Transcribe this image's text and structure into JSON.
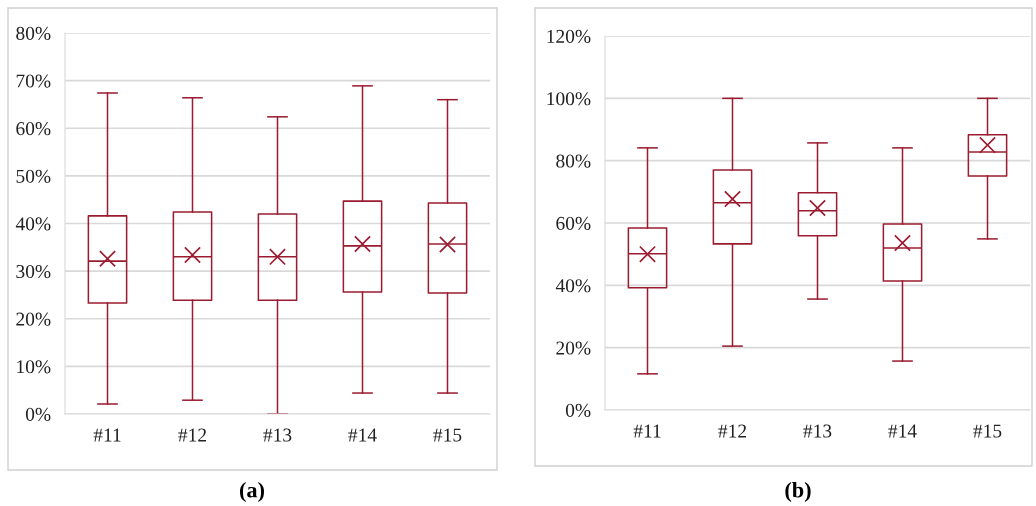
{
  "chart_data": [
    {
      "type": "box",
      "categories": [
        "#11",
        "#12",
        "#13",
        "#14",
        "#15"
      ],
      "color": "#9b1c31",
      "marker": "cross",
      "grid": "y",
      "ylim": [
        0,
        80
      ],
      "yticks": [
        {
          "value": 0,
          "label": "0%"
        },
        {
          "value": 10,
          "label": "10%"
        },
        {
          "value": 20,
          "label": "20%"
        },
        {
          "value": 30,
          "label": "30%"
        },
        {
          "value": 40,
          "label": "40%"
        },
        {
          "value": 50,
          "label": "50%"
        },
        {
          "value": 60,
          "label": "60%"
        },
        {
          "value": 70,
          "label": "70%"
        },
        {
          "value": 80,
          "label": "80%"
        }
      ],
      "boxes": [
        {
          "low": 2.1,
          "q1": 23.3,
          "median": 32.1,
          "q3": 41.6,
          "high": 67.4,
          "mean": 32.6
        },
        {
          "low": 2.9,
          "q1": 23.9,
          "median": 33.0,
          "q3": 42.4,
          "high": 66.4,
          "mean": 33.4
        },
        {
          "low": 0,
          "q1": 23.9,
          "median": 33.0,
          "q3": 42.0,
          "high": 62.4,
          "mean": 33.0
        },
        {
          "low": 4.4,
          "q1": 25.6,
          "median": 35.3,
          "q3": 44.7,
          "high": 68.9,
          "mean": 35.7
        },
        {
          "low": 4.4,
          "q1": 25.4,
          "median": 35.7,
          "q3": 44.3,
          "high": 66.0,
          "mean": 35.6
        }
      ],
      "annotations": [
        "(a)"
      ]
    },
    {
      "type": "box",
      "categories": [
        "#11",
        "#12",
        "#13",
        "#14",
        "#15"
      ],
      "color": "#9b1c31",
      "marker": "cross",
      "grid": "y",
      "ylim": [
        0,
        120
      ],
      "yticks": [
        {
          "value": 0,
          "label": "0%"
        },
        {
          "value": 20,
          "label": "20%"
        },
        {
          "value": 40,
          "label": "40%"
        },
        {
          "value": 60,
          "label": "60%"
        },
        {
          "value": 80,
          "label": "80%"
        },
        {
          "value": 100,
          "label": "100%"
        },
        {
          "value": 120,
          "label": "120%"
        }
      ],
      "boxes": [
        {
          "low": 11.6,
          "q1": 39.2,
          "median": 50.1,
          "q3": 58.4,
          "high": 84.1,
          "mean": 50.0
        },
        {
          "low": 20.5,
          "q1": 53.3,
          "median": 66.5,
          "q3": 77.0,
          "high": 100,
          "mean": 67.7
        },
        {
          "low": 35.6,
          "q1": 55.9,
          "median": 63.9,
          "q3": 69.7,
          "high": 85.7,
          "mean": 64.8
        },
        {
          "low": 15.7,
          "q1": 41.4,
          "median": 52.0,
          "q3": 59.7,
          "high": 84.1,
          "mean": 53.6
        },
        {
          "low": 54.9,
          "q1": 75.1,
          "median": 82.8,
          "q3": 88.3,
          "high": 100,
          "mean": 85.0
        }
      ],
      "annotations": [
        "(b)"
      ]
    }
  ]
}
